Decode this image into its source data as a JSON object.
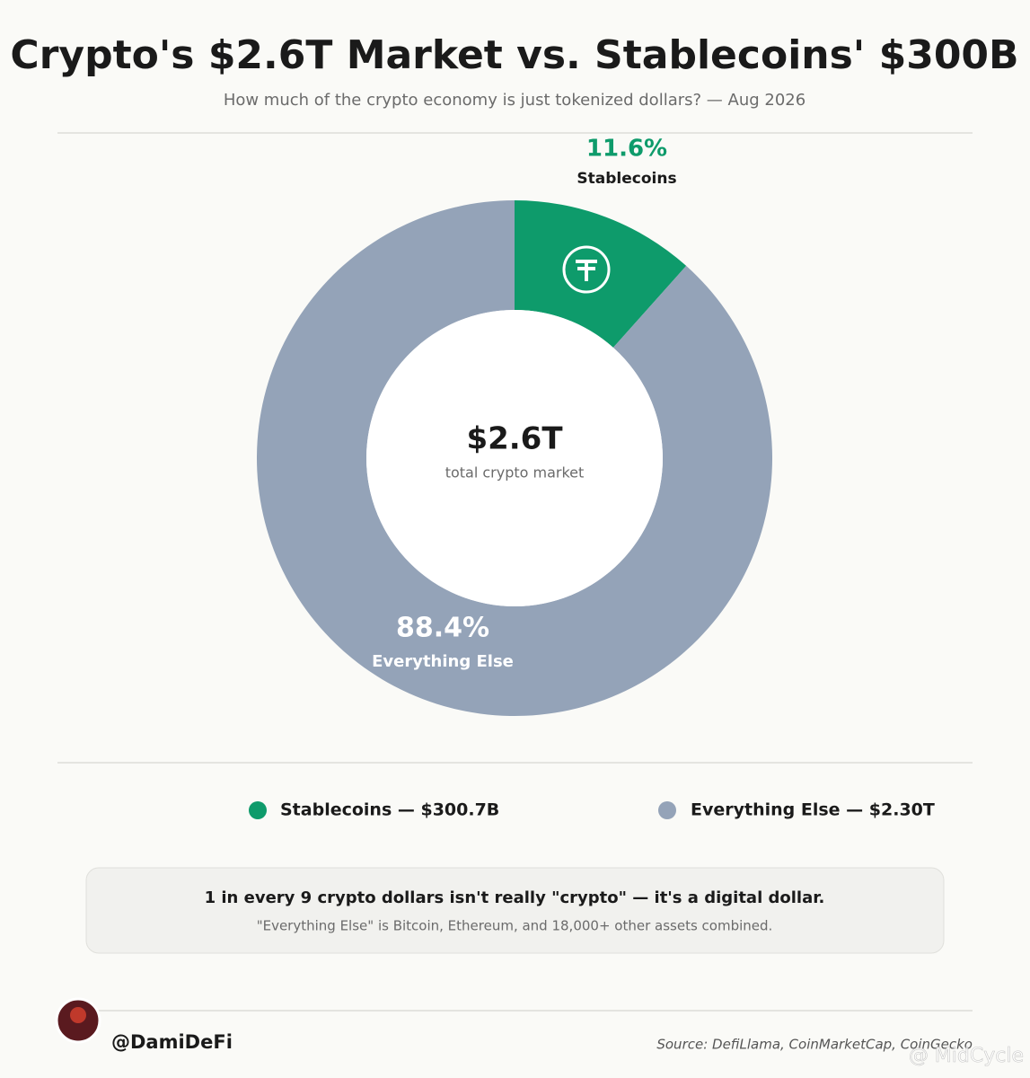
{
  "chart_data": {
    "type": "donut",
    "title": "Crypto's $2.6T Market vs. Stablecoins' $300B",
    "subtitle": "How much of the crypto economy is just tokenized dollars? — Aug 2026",
    "categories": [
      "Stablecoins",
      "Everything Else"
    ],
    "values": [
      11.6,
      88.4
    ],
    "value_labels": [
      "11.6%",
      "88.4%"
    ],
    "colors": [
      "#0e9b6b",
      "#94a3b8"
    ],
    "legend_labels": [
      "Stablecoins — $300.7B",
      "Everything Else — $2.30T"
    ],
    "center_value": "$2.6T",
    "center_label": "total crypto market"
  },
  "callout": {
    "headline": "1 in every 9 crypto dollars isn't really \"crypto\" — it's a digital dollar.",
    "note": "\"Everything Else\" is Bitcoin, Ethereum, and 18,000+ other assets combined."
  },
  "footer": {
    "handle": "@DamiDeFi",
    "source": "Source: DefiLlama, CoinMarketCap, CoinGecko",
    "watermark": "@ MidCycle"
  }
}
